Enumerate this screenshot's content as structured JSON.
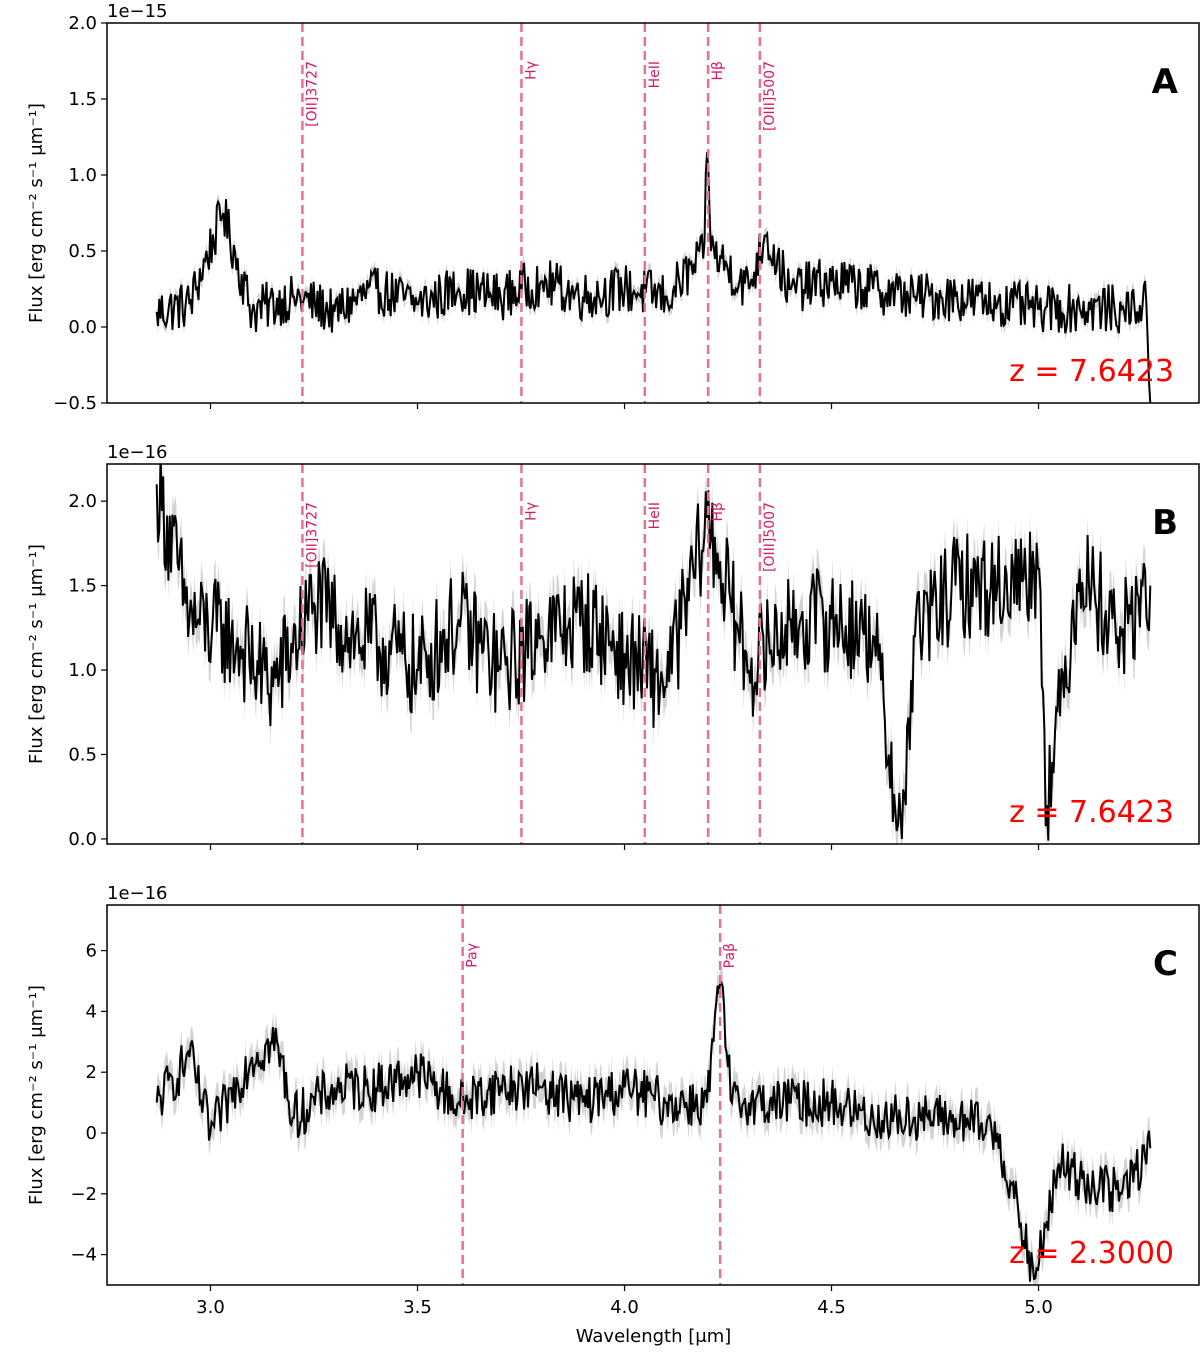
{
  "figure": {
    "xlabel": "Wavelength [μm]",
    "x_range": [
      2.75,
      5.39
    ],
    "x_ticks": [
      3.0,
      3.5,
      4.0,
      4.5,
      5.0
    ],
    "x_tick_labels": [
      "3.0",
      "3.5",
      "4.0",
      "4.5",
      "5.0"
    ]
  },
  "chart_data": [
    {
      "type": "line",
      "panel": "A",
      "ylabel": "Flux [erg cm⁻² s⁻¹ μm⁻¹]",
      "offset_text": "1e−15",
      "ylim": [
        -0.5,
        2.0
      ],
      "y_ticks": [
        -0.5,
        0.0,
        0.5,
        1.0,
        1.5,
        2.0
      ],
      "y_tick_labels": [
        "−0.5",
        "0.0",
        "0.5",
        "1.0",
        "1.5",
        "2.0"
      ],
      "redshift_label": "z = 7.6423",
      "lines": [
        {
          "label": "[OII]3727",
          "x": 3.222
        },
        {
          "label": "Hγ",
          "x": 3.751
        },
        {
          "label": "HeII",
          "x": 4.049
        },
        {
          "label": "Hβ",
          "x": 4.202
        },
        {
          "label": "[OIII]5007",
          "x": 4.327
        }
      ],
      "series": [
        {
          "name": "flux",
          "color": "#000000",
          "x": [
            2.87,
            2.95,
            3.03,
            3.1,
            3.2,
            3.3,
            3.4,
            3.5,
            3.6,
            3.7,
            3.8,
            3.9,
            4.0,
            4.1,
            4.19,
            4.2,
            4.21,
            4.3,
            4.34,
            4.4,
            4.5,
            4.6,
            4.7,
            4.8,
            4.9,
            5.0,
            5.1,
            5.2,
            5.26,
            5.27
          ],
          "y": [
            0.1,
            0.15,
            0.75,
            0.1,
            0.2,
            0.1,
            0.25,
            0.15,
            0.25,
            0.2,
            0.3,
            0.2,
            0.25,
            0.2,
            0.45,
            1.15,
            0.5,
            0.25,
            0.6,
            0.25,
            0.3,
            0.25,
            0.2,
            0.2,
            0.15,
            0.12,
            0.12,
            0.12,
            0.15,
            -0.5
          ]
        },
        {
          "name": "error",
          "color": "#d3d3d3",
          "half_width": 0.05
        }
      ]
    },
    {
      "type": "line",
      "panel": "B",
      "ylabel": "Flux [erg cm⁻² s⁻¹ μm⁻¹]",
      "offset_text": "1e−16",
      "ylim": [
        -0.03,
        2.22
      ],
      "y_ticks": [
        0.0,
        0.5,
        1.0,
        1.5,
        2.0
      ],
      "y_tick_labels": [
        "0.0",
        "0.5",
        "1.0",
        "1.5",
        "2.0"
      ],
      "redshift_label": "z = 7.6423",
      "lines": [
        {
          "label": "[OII]3727",
          "x": 3.222
        },
        {
          "label": "Hγ",
          "x": 3.751
        },
        {
          "label": "HeII",
          "x": 4.049
        },
        {
          "label": "Hβ",
          "x": 4.202
        },
        {
          "label": "[OIII]5007",
          "x": 4.327
        }
      ],
      "series": [
        {
          "name": "flux",
          "color": "#000000",
          "x": [
            2.87,
            2.95,
            3.05,
            3.15,
            3.25,
            3.35,
            3.45,
            3.5,
            3.6,
            3.7,
            3.8,
            3.9,
            4.0,
            4.1,
            4.2,
            4.3,
            4.4,
            4.5,
            4.6,
            4.67,
            4.7,
            4.8,
            4.9,
            5.0,
            5.02,
            5.1,
            5.2,
            5.27
          ],
          "y": [
            2.1,
            1.3,
            1.2,
            0.9,
            1.4,
            1.2,
            1.1,
            1.0,
            1.3,
            1.0,
            1.2,
            1.3,
            1.1,
            0.9,
            1.9,
            1.0,
            1.3,
            1.3,
            1.2,
            0.0,
            1.2,
            1.5,
            1.5,
            1.6,
            0.2,
            1.6,
            1.2,
            1.5
          ]
        },
        {
          "name": "error",
          "color": "#d3d3d3",
          "half_width": 0.12
        }
      ]
    },
    {
      "type": "line",
      "panel": "C",
      "ylabel": "Flux [erg cm⁻² s⁻¹ μm⁻¹]",
      "offset_text": "1e−16",
      "ylim": [
        -5.0,
        7.5
      ],
      "y_ticks": [
        -4,
        -2,
        0,
        2,
        4,
        6
      ],
      "y_tick_labels": [
        "−4",
        "−2",
        "0",
        "2",
        "4",
        "6"
      ],
      "redshift_label": "z = 2.3000",
      "lines": [
        {
          "label": "Paγ",
          "x": 3.609
        },
        {
          "label": "Paβ",
          "x": 4.231
        }
      ],
      "series": [
        {
          "name": "flux",
          "color": "#000000",
          "x": [
            2.87,
            2.95,
            3.0,
            3.1,
            3.16,
            3.2,
            3.3,
            3.4,
            3.5,
            3.6,
            3.7,
            3.8,
            3.9,
            4.0,
            4.1,
            4.2,
            4.23,
            4.26,
            4.3,
            4.4,
            4.5,
            4.6,
            4.7,
            4.8,
            4.9,
            4.99,
            5.05,
            5.1,
            5.2,
            5.27
          ],
          "y": [
            1.0,
            2.5,
            0.0,
            2.5,
            3.0,
            0.5,
            1.5,
            1.5,
            2.0,
            1.0,
            1.5,
            1.5,
            1.0,
            1.5,
            1.0,
            1.0,
            5.0,
            1.0,
            1.0,
            1.0,
            1.0,
            0.5,
            0.5,
            0.5,
            0.0,
            -4.8,
            -1.0,
            -1.5,
            -2.0,
            -0.5
          ]
        },
        {
          "name": "error",
          "color": "#d3d3d3",
          "half_width": 0.5
        }
      ]
    }
  ]
}
